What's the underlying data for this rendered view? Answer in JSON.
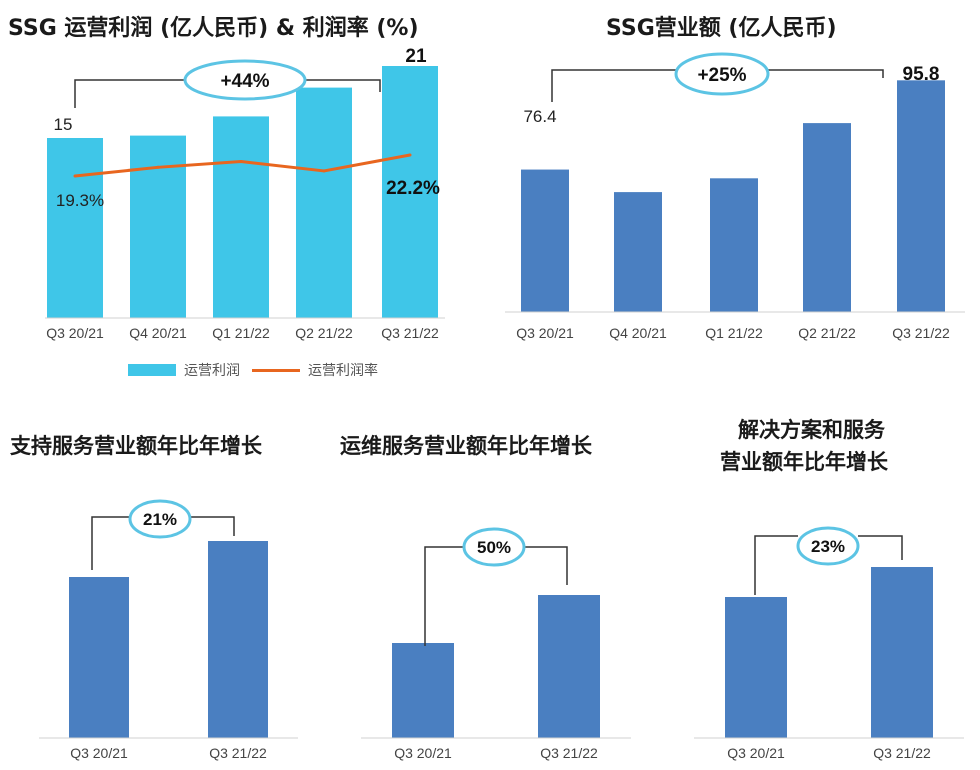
{
  "titles": {
    "chart1": "SSG 运营利润 (亿人民币) & 利润率 (%)",
    "chart2": "SSG营业额 (亿人民币)",
    "chart3": "支持服务营业额年比年增长",
    "chart4": "运维服务营业额年比年增长",
    "chart5_line1": "解决方案和服务",
    "chart5_line2": "营业额年比年增长"
  },
  "legend": {
    "bar_label": "运营利润",
    "line_label": "运营利润率"
  },
  "colors": {
    "cyan_bar": "#3fc6e8",
    "blue_bar": "#4a7fc1",
    "margin_line": "#e8661f",
    "bubble_stroke": "#5cc4e4",
    "bracket": "#333333"
  },
  "chart_data": [
    {
      "type": "bar",
      "title": "SSG 运营利润 (亿人民币) & 利润率 (%)",
      "categories": [
        "Q3 20/21",
        "Q4 20/21",
        "Q1 21/22",
        "Q2 21/22",
        "Q3 21/22"
      ],
      "series": [
        {
          "name": "运营利润",
          "values": [
            15,
            15.2,
            16.8,
            19.2,
            21
          ],
          "color": "#3fc6e8"
        },
        {
          "name": "运营利润率",
          "type": "line",
          "values": [
            19.3,
            20.5,
            21.3,
            20.0,
            22.2
          ],
          "color": "#e8661f"
        }
      ],
      "data_labels": {
        "first_bar": "15",
        "last_bar": "21",
        "first_margin": "19.3%",
        "last_margin": "22.2%"
      },
      "growth_label": "+44%",
      "legend_position": "bottom",
      "grid": false
    },
    {
      "type": "bar",
      "title": "SSG营业额 (亿人民币)",
      "categories": [
        "Q3 20/21",
        "Q4 20/21",
        "Q1 21/22",
        "Q2 21/22",
        "Q3 21/22"
      ],
      "values": [
        76.4,
        71.5,
        74.5,
        86.5,
        95.8
      ],
      "data_labels": {
        "first_bar": "76.4",
        "last_bar": "95.8"
      },
      "growth_label": "+25%",
      "grid": false
    },
    {
      "type": "bar",
      "title": "支持服务营业额年比年增长",
      "categories": [
        "Q3 20/21",
        "Q3 21/22"
      ],
      "values": [
        100,
        121
      ],
      "growth_label": "21%",
      "grid": false
    },
    {
      "type": "bar",
      "title": "运维服务营业额年比年增长",
      "categories": [
        "Q3 20/21",
        "Q3 21/22"
      ],
      "values": [
        100,
        150
      ],
      "growth_label": "50%",
      "grid": false
    },
    {
      "type": "bar",
      "title": "解决方案和服务 营业额年比年增长",
      "categories": [
        "Q3 20/21",
        "Q3 21/22"
      ],
      "values": [
        100,
        123
      ],
      "growth_label": "23%",
      "grid": false
    }
  ]
}
